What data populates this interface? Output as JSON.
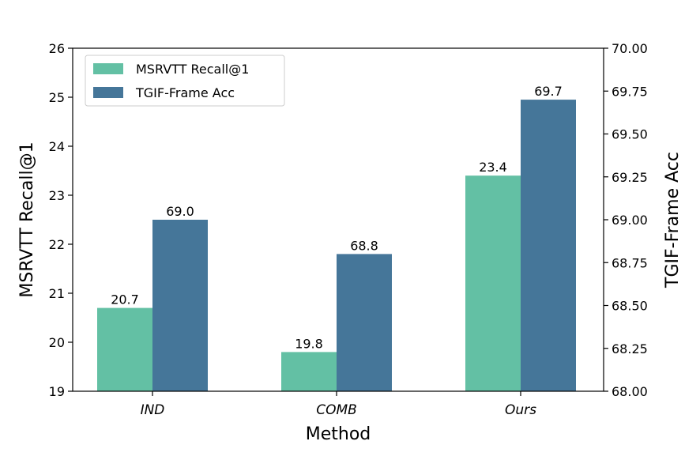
{
  "chart_data": {
    "type": "bar",
    "categories": [
      "IND",
      "COMB",
      "Ours"
    ],
    "series": [
      {
        "name": "MSRVTT Recall@1",
        "axis": "left",
        "color": "#63c0a4",
        "values": [
          20.7,
          19.8,
          23.4
        ],
        "labels": [
          "20.7",
          "19.8",
          "23.4"
        ]
      },
      {
        "name": "TGIF-Frame Acc",
        "axis": "right",
        "color": "#457699",
        "values": [
          69.0,
          68.8,
          69.7
        ],
        "labels": [
          "69.0",
          "68.8",
          "69.7"
        ]
      }
    ],
    "xlabel": "Method",
    "ylabel_left": "MSRVTT Recall@1",
    "ylabel_right": "TGIF-Frame Acc",
    "ylim_left": [
      19,
      26
    ],
    "ylim_right": [
      68.0,
      70.0
    ],
    "yticks_left": [
      "19",
      "20",
      "21",
      "22",
      "23",
      "24",
      "25",
      "26"
    ],
    "yticks_right": [
      "68.00",
      "68.25",
      "68.50",
      "68.75",
      "69.00",
      "69.25",
      "69.50",
      "69.75",
      "70.00"
    ],
    "grid": false,
    "legend_position": "top-left"
  }
}
